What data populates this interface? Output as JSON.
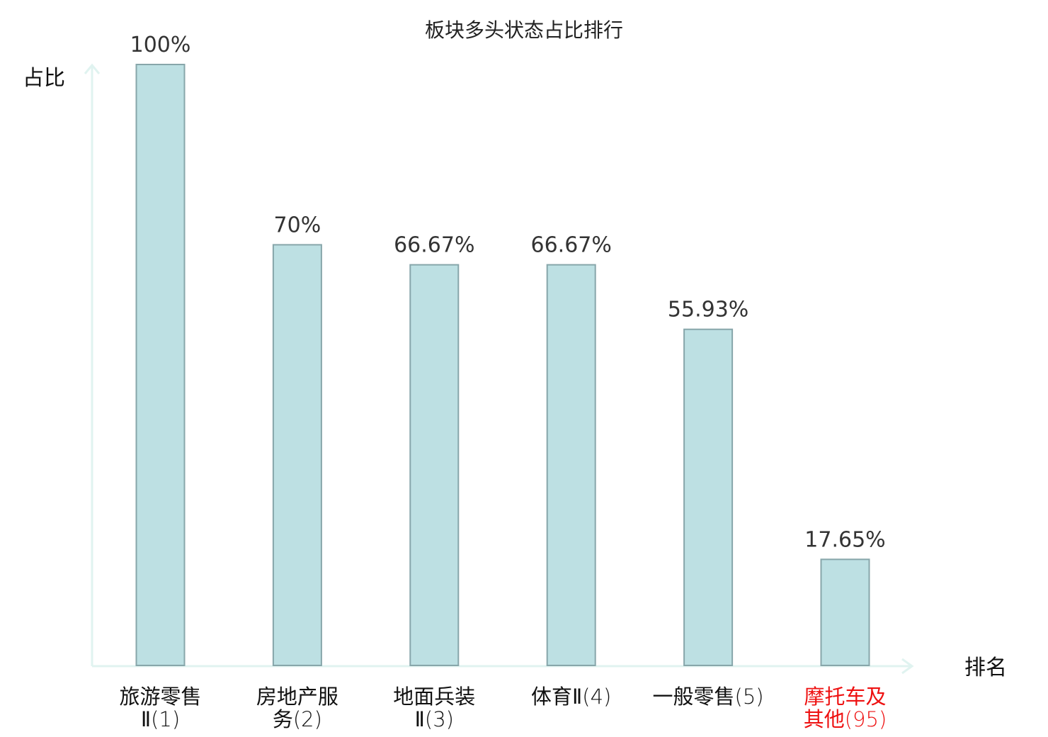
{
  "chart_data": {
    "type": "bar",
    "title": "板块多头状态占比排行",
    "ylabel": "占比",
    "xlabel": "排名",
    "ylim": [
      0,
      100
    ],
    "grid": false,
    "value_unit": "%",
    "categories": [
      {
        "lines": [
          "旅游零售",
          "Ⅱ(1)"
        ],
        "highlight": false
      },
      {
        "lines": [
          "房地产服",
          "务(2)"
        ],
        "highlight": false
      },
      {
        "lines": [
          "地面兵装",
          "Ⅱ(3)"
        ],
        "highlight": false
      },
      {
        "lines": [
          "体育Ⅱ(4)"
        ],
        "highlight": false
      },
      {
        "lines": [
          "一般零售(5)"
        ],
        "highlight": false
      },
      {
        "lines": [
          "摩托车及",
          "其他(95)"
        ],
        "highlight": true
      }
    ],
    "values": [
      100,
      70,
      66.67,
      66.67,
      55.93,
      17.65
    ],
    "value_labels": [
      "100%",
      "70%",
      "66.67%",
      "66.67%",
      "55.93%",
      "17.65%"
    ],
    "colors": {
      "bar_fill": "#bde0e3",
      "bar_stroke": "#87a6aa",
      "axis": "#e0f3f0",
      "label_default": "#111111",
      "label_highlight": "#ee1111"
    }
  }
}
